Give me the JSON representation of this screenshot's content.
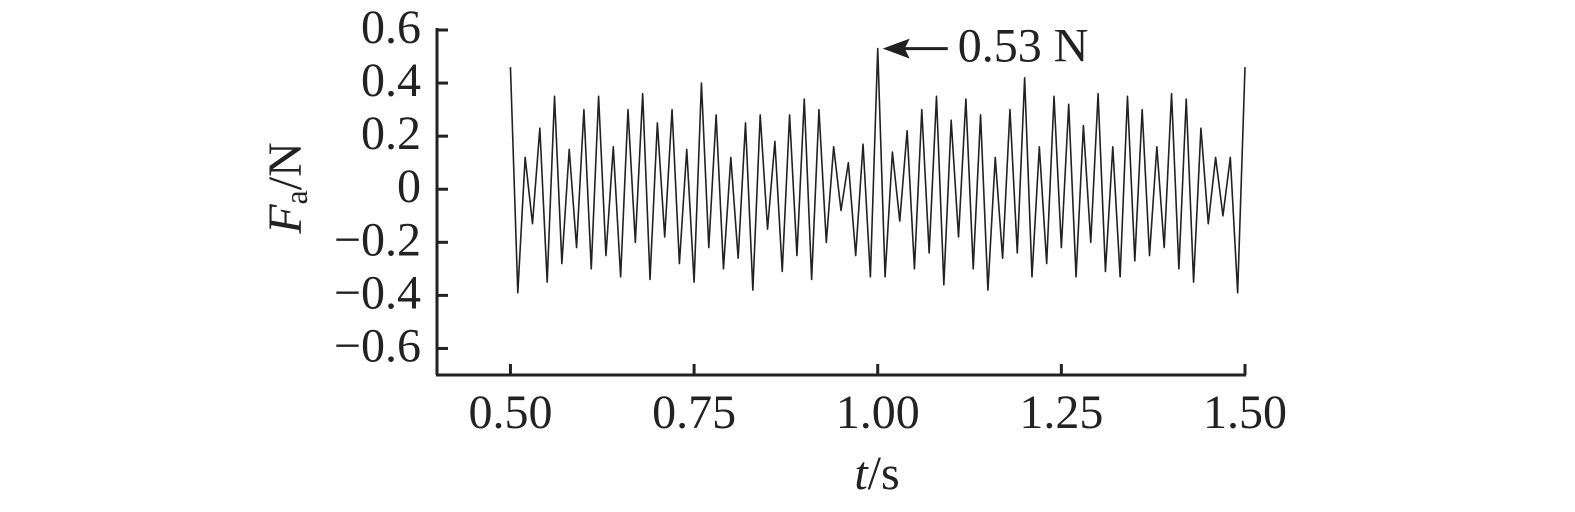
{
  "chart_data": {
    "type": "line",
    "x_label": {
      "symbol": "t",
      "unit": "/s"
    },
    "y_label": {
      "symbol": "F",
      "subscript": "a",
      "unit": "/N"
    },
    "annotation": {
      "text": "0.53 N",
      "x": 1.0,
      "y": 0.53
    },
    "x": [
      0.5,
      0.51,
      0.52,
      0.53,
      0.54,
      0.55,
      0.56,
      0.57,
      0.58,
      0.59,
      0.6,
      0.61,
      0.62,
      0.63,
      0.64,
      0.65,
      0.66,
      0.67,
      0.68,
      0.69,
      0.7,
      0.71,
      0.72,
      0.73,
      0.74,
      0.75,
      0.76,
      0.77,
      0.78,
      0.79,
      0.8,
      0.81,
      0.82,
      0.83,
      0.84,
      0.85,
      0.86,
      0.87,
      0.88,
      0.89,
      0.9,
      0.91,
      0.92,
      0.93,
      0.94,
      0.95,
      0.96,
      0.97,
      0.98,
      0.99,
      1.0,
      1.01,
      1.02,
      1.03,
      1.04,
      1.05,
      1.06,
      1.07,
      1.08,
      1.09,
      1.1,
      1.11,
      1.12,
      1.13,
      1.14,
      1.15,
      1.16,
      1.17,
      1.18,
      1.19,
      1.2,
      1.21,
      1.22,
      1.23,
      1.24,
      1.25,
      1.26,
      1.27,
      1.28,
      1.29,
      1.3,
      1.31,
      1.32,
      1.33,
      1.34,
      1.35,
      1.36,
      1.37,
      1.38,
      1.39,
      1.4,
      1.41,
      1.42,
      1.43,
      1.44,
      1.45,
      1.46,
      1.47,
      1.48,
      1.49,
      1.5
    ],
    "series": [
      {
        "color": "#222222",
        "values": [
          0.46,
          -0.39,
          0.12,
          -0.13,
          0.23,
          -0.35,
          0.35,
          -0.28,
          0.15,
          -0.22,
          0.3,
          -0.3,
          0.35,
          -0.25,
          0.16,
          -0.33,
          0.3,
          -0.2,
          0.36,
          -0.34,
          0.25,
          -0.18,
          0.3,
          -0.28,
          0.15,
          -0.35,
          0.4,
          -0.22,
          0.28,
          -0.3,
          0.12,
          -0.26,
          0.25,
          -0.38,
          0.28,
          -0.15,
          0.18,
          -0.31,
          0.28,
          -0.25,
          0.34,
          -0.34,
          0.3,
          -0.2,
          0.16,
          -0.08,
          0.1,
          -0.25,
          0.17,
          -0.33,
          0.53,
          -0.33,
          0.14,
          -0.12,
          0.22,
          -0.3,
          0.3,
          -0.24,
          0.35,
          -0.36,
          0.26,
          -0.18,
          0.34,
          -0.3,
          0.28,
          -0.38,
          0.12,
          -0.26,
          0.3,
          -0.24,
          0.42,
          -0.33,
          0.16,
          -0.28,
          0.35,
          -0.22,
          0.32,
          -0.33,
          0.24,
          -0.2,
          0.36,
          -0.31,
          0.16,
          -0.33,
          0.35,
          -0.27,
          0.3,
          -0.25,
          0.16,
          -0.22,
          0.36,
          -0.3,
          0.34,
          -0.35,
          0.23,
          -0.13,
          0.12,
          -0.1,
          0.12,
          -0.39,
          0.46
        ]
      }
    ],
    "xlim": [
      0.4,
      1.5
    ],
    "xticks": [
      {
        "value": 0.5,
        "label": "0.50"
      },
      {
        "value": 0.75,
        "label": "0.75"
      },
      {
        "value": 1.0,
        "label": "1.00"
      },
      {
        "value": 1.25,
        "label": "1.25"
      },
      {
        "value": 1.5,
        "label": "1.50"
      }
    ],
    "ylim": [
      -0.7,
      0.6
    ],
    "yticks": [
      {
        "value": -0.6,
        "label": "−0.6"
      },
      {
        "value": -0.4,
        "label": "−0.4"
      },
      {
        "value": -0.2,
        "label": "−0.2"
      },
      0,
      0.2,
      0.4,
      0.6
    ],
    "grid": false
  }
}
